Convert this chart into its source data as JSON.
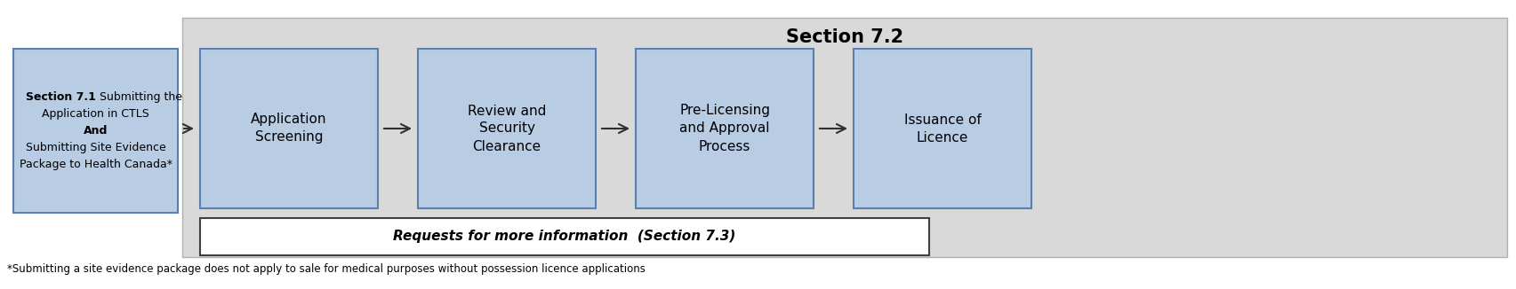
{
  "title": "Section 7.2",
  "title_fontsize": 15,
  "title_fontweight": "bold",
  "bg_rect_color": "#d9d9d9",
  "bg_rect_edge": "#b0b0b0",
  "box_fill_color": "#b8cce4",
  "box_edge_color": "#5b80b0",
  "requests_box_fill": "#ffffff",
  "requests_box_edge": "#404040",
  "left_box_text_bold": "Section 7.1",
  "left_box_text_rest": " Submitting the",
  "left_box_line2": "Application in CTLS",
  "left_box_line3": "And",
  "left_box_line4": "Submitting Site Evidence",
  "left_box_line5": "Package to Health Canada*",
  "flow_boxes": [
    {
      "lines": [
        "Application",
        "Screening"
      ]
    },
    {
      "lines": [
        "Review and",
        "Security",
        "Clearance"
      ]
    },
    {
      "lines": [
        "Pre-Licensing",
        "and Approval",
        "Process"
      ]
    },
    {
      "lines": [
        "Issuance of",
        "Licence"
      ]
    }
  ],
  "requests_text": "Requests for more information  (Section 7.3)",
  "footnote": "*Submitting a site evidence package does not apply to sale for medical purposes without possession licence applications",
  "footnote_fontsize": 8.5,
  "arrow_color": "#303030",
  "figsize": [
    17.05,
    3.26
  ],
  "dpi": 100
}
